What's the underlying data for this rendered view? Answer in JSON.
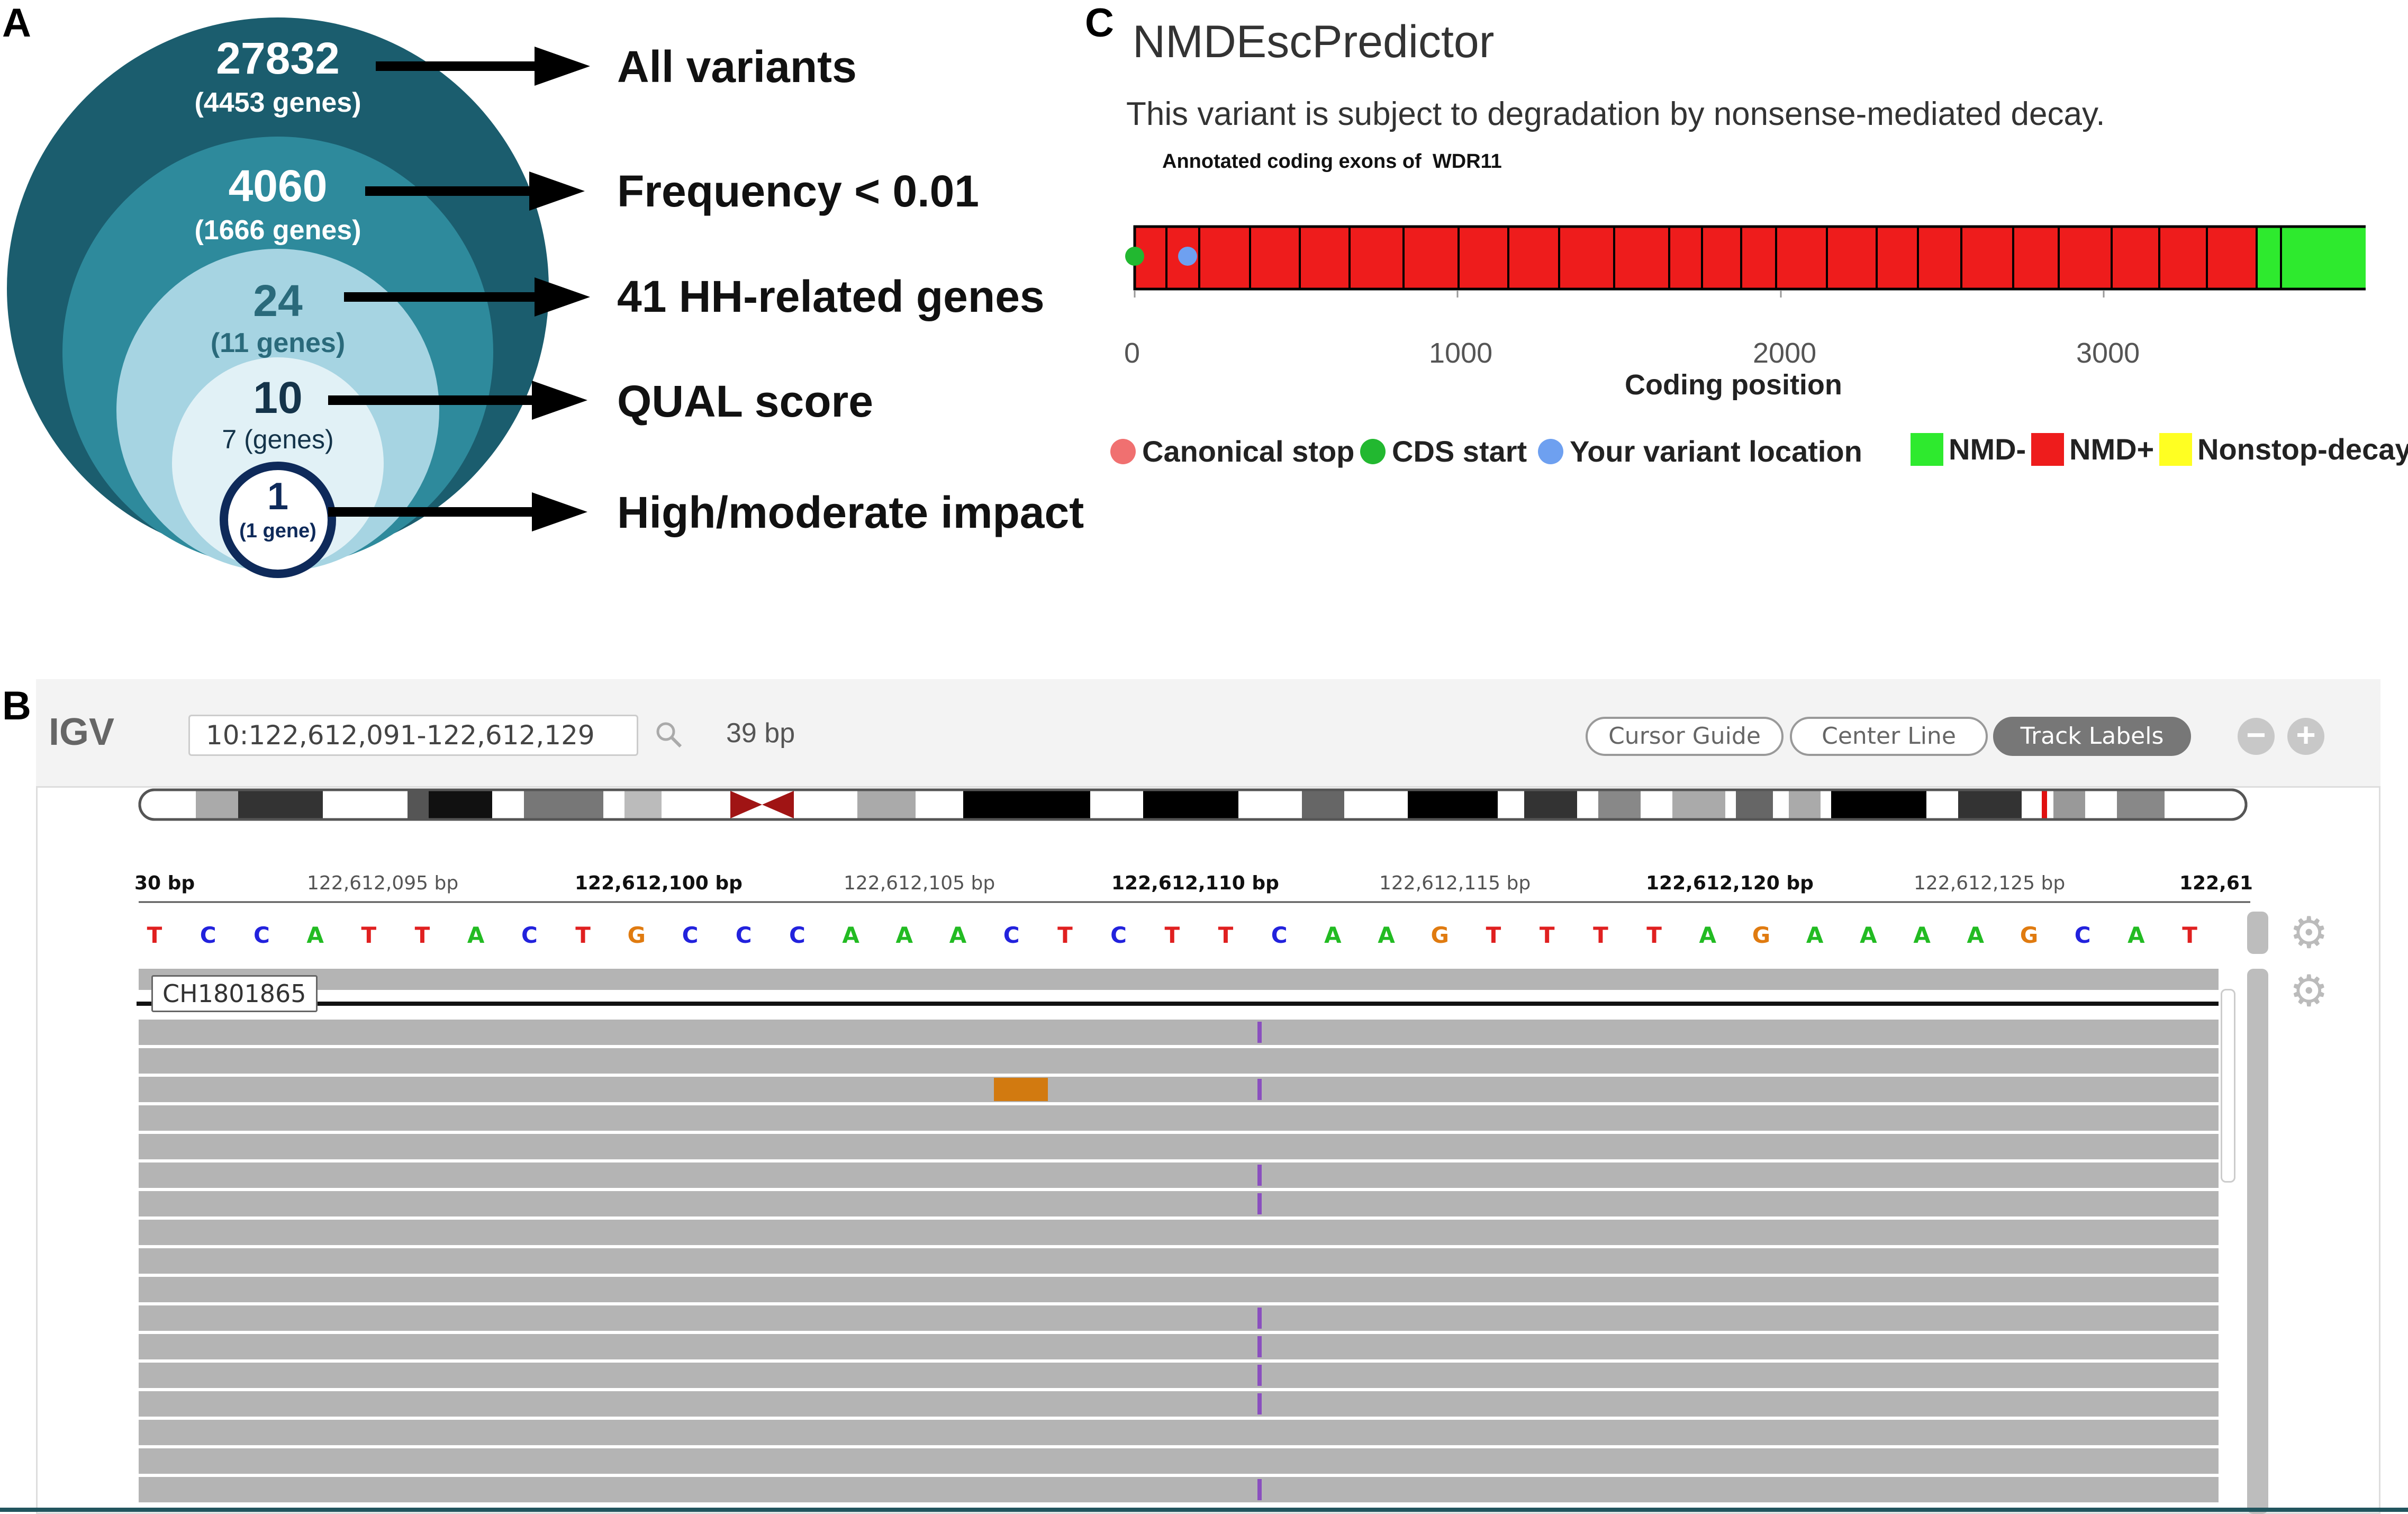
{
  "panels": {
    "a": {
      "letter": "A"
    },
    "b": {
      "letter": "B"
    },
    "c": {
      "letter": "C"
    }
  },
  "funnel": {
    "levels": [
      {
        "count": "27832",
        "genes": "(4453 genes)",
        "label": "All variants"
      },
      {
        "count": "4060",
        "genes": "(1666 genes)",
        "label": "Frequency < 0.01"
      },
      {
        "count": "24",
        "genes": "(11 genes)",
        "label": "41 HH-related genes"
      },
      {
        "count": "10",
        "genes": "7 (genes)",
        "label": "QUAL score"
      },
      {
        "count": "1",
        "genes": "(1 gene)",
        "label": "High/moderate impact"
      }
    ],
    "colors": [
      "#1b5d6e",
      "#2e8a9c",
      "#9fd0df",
      "#d9eef3",
      "#ffffff"
    ]
  },
  "nmd": {
    "title": "NMDEscPredictor",
    "message": "This variant is subject to degradation by nonsense-mediated decay.",
    "exons_caption": "Annotated coding exons of  WDR11",
    "xlabel": "Coding position",
    "ticks": [
      "0",
      "1000",
      "2000",
      "3000"
    ],
    "legend": {
      "canonical_stop": "Canonical stop",
      "cds_start": "CDS start",
      "variant_location": "Your variant location",
      "nmd_minus": "NMD-",
      "nmd_plus": "NMD+",
      "nonstop": "Nonstop-decay"
    },
    "colors": {
      "nmd_plus": "#ee1c1c",
      "nmd_minus": "#2eea2e",
      "nonstop": "#ffff22",
      "stop": "#f07070",
      "start": "#22b830",
      "variant": "#6ea0f0"
    }
  },
  "igv": {
    "logo": "IGV",
    "locus": "10:122,612,091-122,612,129",
    "width_label": "39 bp",
    "buttons": {
      "cursor_guide": "Cursor Guide",
      "center_line": "Center Line",
      "track_labels": "Track Labels"
    },
    "ruler": [
      {
        "text": "30 bp",
        "bold": true
      },
      {
        "text": "122,612,095 bp",
        "bold": false
      },
      {
        "text": "122,612,100 bp",
        "bold": true
      },
      {
        "text": "122,612,105 bp",
        "bold": false
      },
      {
        "text": "122,612,110 bp",
        "bold": true
      },
      {
        "text": "122,612,115 bp",
        "bold": false
      },
      {
        "text": "122,612,120 bp",
        "bold": true
      },
      {
        "text": "122,612,125 bp",
        "bold": false
      },
      {
        "text": "122,61",
        "bold": true
      }
    ],
    "sequence": "TCCATTACTGCCCAAACTCTTCAAGTTTTAGAAAAGCAT",
    "track_name": "CH1801865"
  }
}
